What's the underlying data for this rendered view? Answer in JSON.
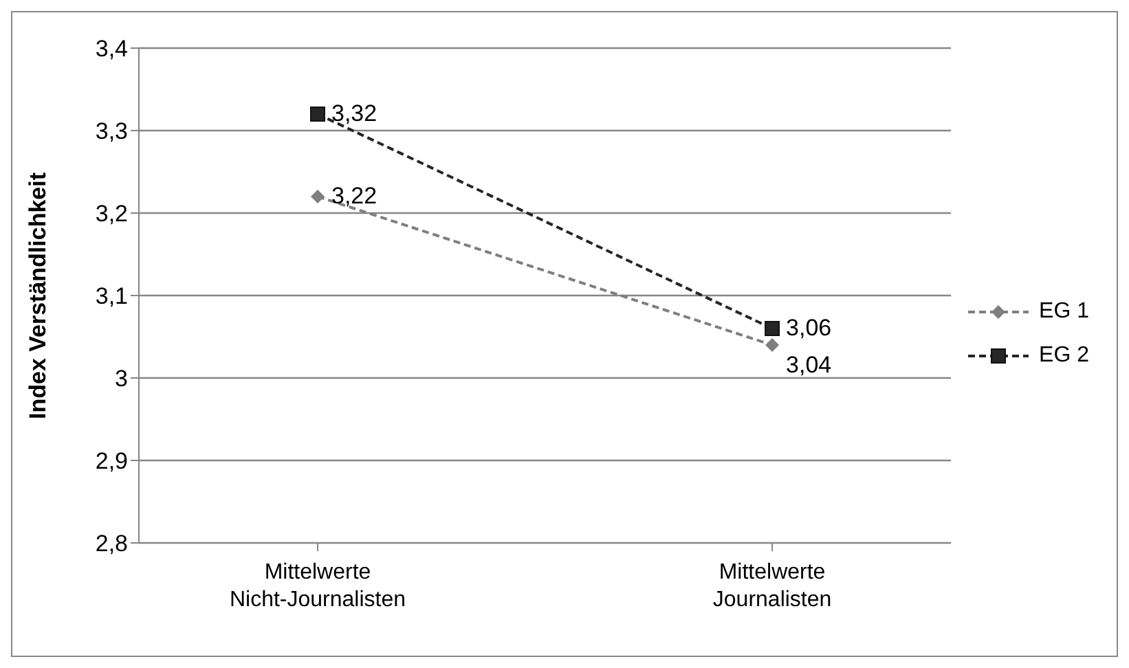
{
  "chart_data": {
    "type": "line",
    "ylabel": "Index Verständlichkeit",
    "categories": [
      "Mittelwerte Nicht-Journalisten",
      "Mittelwerte Journalisten"
    ],
    "series": [
      {
        "name": "EG 1",
        "color": "#7f7f7f",
        "values": [
          3.22,
          3.04
        ],
        "marker": "diamond",
        "value_labels": [
          "3,22",
          "3,04"
        ]
      },
      {
        "name": "EG 2",
        "color": "#262626",
        "values": [
          3.32,
          3.06
        ],
        "marker": "square",
        "value_labels": [
          "3,32",
          "3,06"
        ]
      }
    ],
    "ylim": [
      2.8,
      3.4
    ],
    "yticks": [
      {
        "value": 2.8,
        "label": "2,8"
      },
      {
        "value": 2.9,
        "label": "2,9"
      },
      3,
      {
        "value": 3.1,
        "label": "3,1"
      },
      {
        "value": 3.2,
        "label": "3,2"
      },
      {
        "value": 3.3,
        "label": "3,3"
      },
      {
        "value": 3.4,
        "label": "3,4"
      }
    ],
    "grid": "y",
    "legend": "right",
    "line_style": "dashed"
  }
}
